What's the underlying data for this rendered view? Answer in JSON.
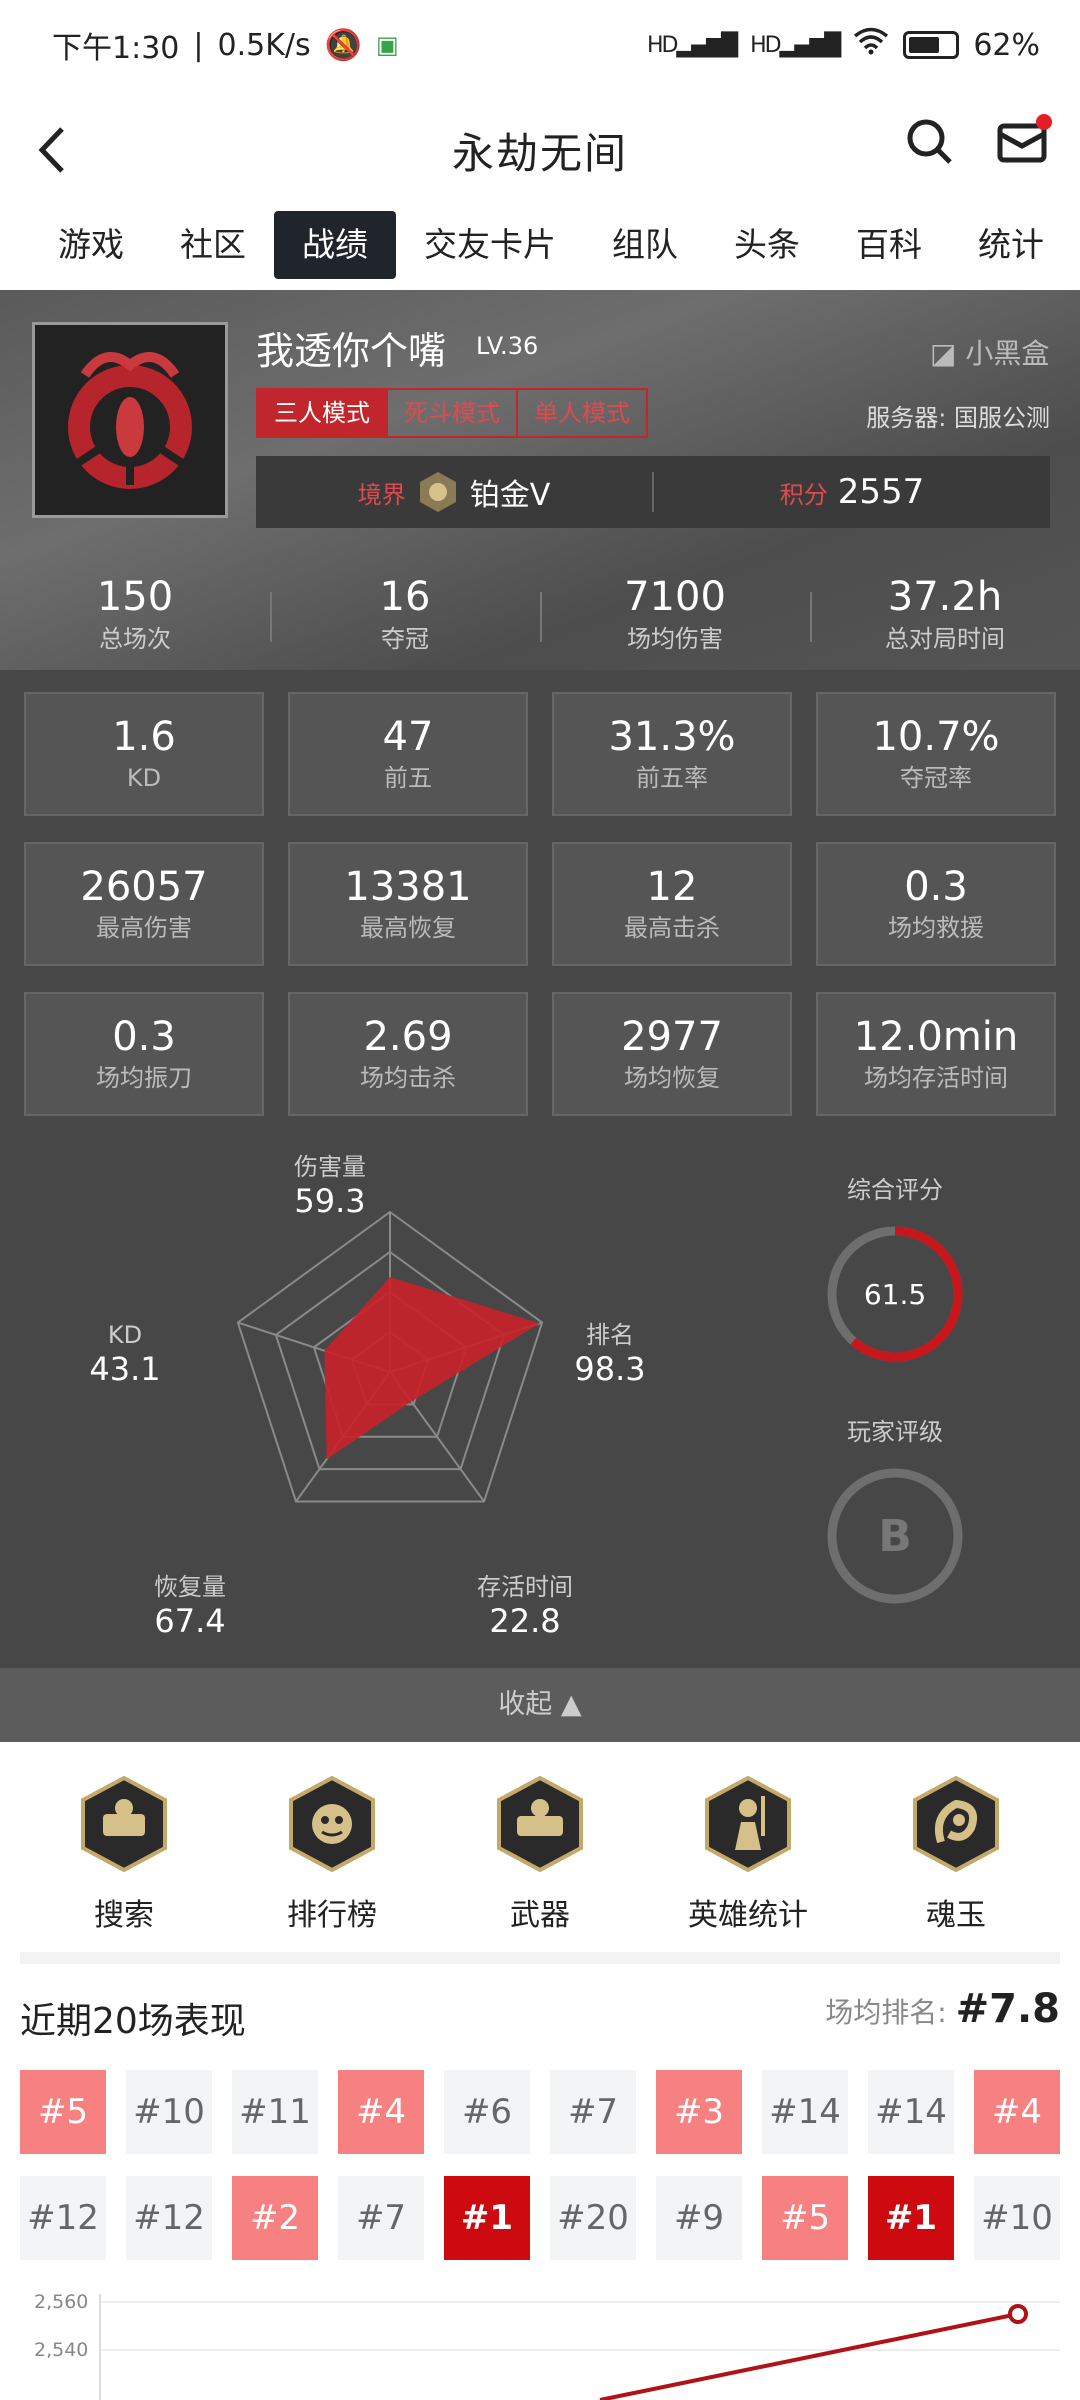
{
  "status": {
    "time": "下午1:30",
    "speed": "0.5K/s",
    "battery": "62%",
    "signal1": "HD",
    "signal2": "HD"
  },
  "nav": {
    "title": "永劫无间"
  },
  "tabs": [
    "游戏",
    "社区",
    "战绩",
    "交友卡片",
    "组队",
    "头条",
    "百科",
    "统计"
  ],
  "active_tab": 2,
  "profile": {
    "name": "我透你个嘴",
    "level": "LV.36",
    "brand": "小黑盒",
    "modes": [
      "三人模式",
      "死斗模式",
      "单人模式"
    ],
    "server": "服务器: 国服公测",
    "realm_label": "境界",
    "realm_value": "铂金V",
    "score_label": "积分",
    "score_value": "2557"
  },
  "summary": [
    {
      "value": "150",
      "label": "总场次"
    },
    {
      "value": "16",
      "label": "夺冠"
    },
    {
      "value": "7100",
      "label": "场均伤害"
    },
    {
      "value": "37.2h",
      "label": "总对局时间"
    }
  ],
  "stats": [
    {
      "value": "1.6",
      "label": "KD"
    },
    {
      "value": "47",
      "label": "前五"
    },
    {
      "value": "31.3%",
      "label": "前五率"
    },
    {
      "value": "10.7%",
      "label": "夺冠率"
    },
    {
      "value": "26057",
      "label": "最高伤害"
    },
    {
      "value": "13381",
      "label": "最高恢复"
    },
    {
      "value": "12",
      "label": "最高击杀"
    },
    {
      "value": "0.3",
      "label": "场均救援"
    },
    {
      "value": "0.3",
      "label": "场均振刀"
    },
    {
      "value": "2.69",
      "label": "场均击杀"
    },
    {
      "value": "2977",
      "label": "场均恢复"
    },
    {
      "value": "12.0min",
      "label": "场均存活时间"
    }
  ],
  "radar": {
    "axes": [
      {
        "label": "伤害量",
        "value": "59.3"
      },
      {
        "label": "排名",
        "value": "98.3"
      },
      {
        "label": "存活时间",
        "value": "22.8"
      },
      {
        "label": "恢复量",
        "value": "67.4"
      },
      {
        "label": "KD",
        "value": "43.1"
      }
    ]
  },
  "overall": {
    "label": "综合评分",
    "value": "61.5",
    "fraction": 0.615,
    "color": "#c8161d"
  },
  "rating": {
    "label": "玩家评级",
    "value": "B"
  },
  "collapse_label": "收起",
  "menu": [
    {
      "label": "搜索",
      "icon": "search-badge-icon"
    },
    {
      "label": "排行榜",
      "icon": "ranking-badge-icon"
    },
    {
      "label": "武器",
      "icon": "weapon-badge-icon"
    },
    {
      "label": "英雄统计",
      "icon": "hero-badge-icon"
    },
    {
      "label": "魂玉",
      "icon": "soul-jade-badge-icon"
    }
  ],
  "recent": {
    "title": "近期20场表现",
    "avg_label": "场均排名: ",
    "avg_value": "#7.8",
    "ranks": [
      "#5",
      "#10",
      "#11",
      "#4",
      "#6",
      "#7",
      "#3",
      "#14",
      "#14",
      "#4",
      "#12",
      "#12",
      "#2",
      "#7",
      "#1",
      "#20",
      "#9",
      "#5",
      "#1",
      "#10"
    ],
    "chart_labels": [
      "2,560",
      "2,540"
    ]
  }
}
